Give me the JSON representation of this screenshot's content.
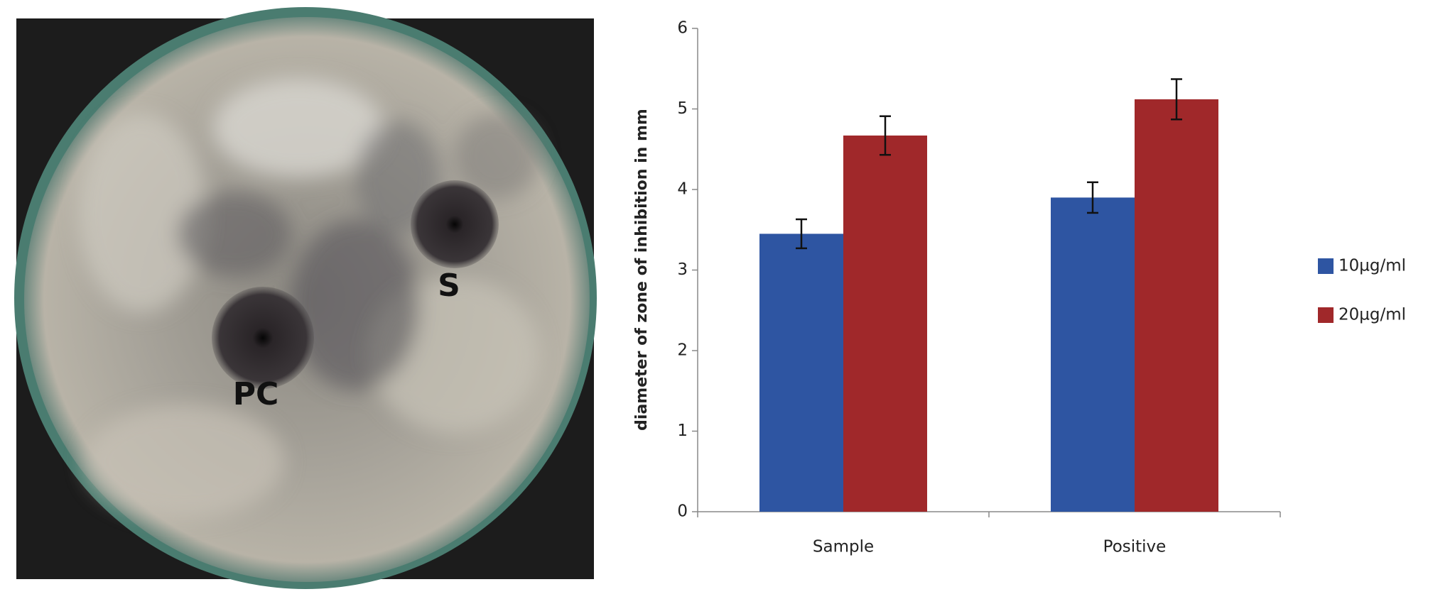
{
  "photo": {
    "labels": [
      "PC",
      "S"
    ]
  },
  "chart_data": {
    "type": "bar",
    "y_label": "diameter of zone of inhibition in mm",
    "categories": [
      "Sample",
      "Positive"
    ],
    "series": [
      {
        "name": "10µg/ml",
        "color": "#2e55a2",
        "values": [
          3.45,
          3.9
        ],
        "errors": [
          0.18,
          0.19
        ]
      },
      {
        "name": "20µg/ml",
        "color": "#a0282a",
        "values": [
          4.67,
          5.12
        ],
        "errors": [
          0.24,
          0.25
        ]
      }
    ],
    "ylim": [
      0,
      6
    ],
    "yticks": [
      0,
      1,
      2,
      3,
      4,
      5,
      6
    ],
    "grid": false,
    "legend": "right"
  }
}
